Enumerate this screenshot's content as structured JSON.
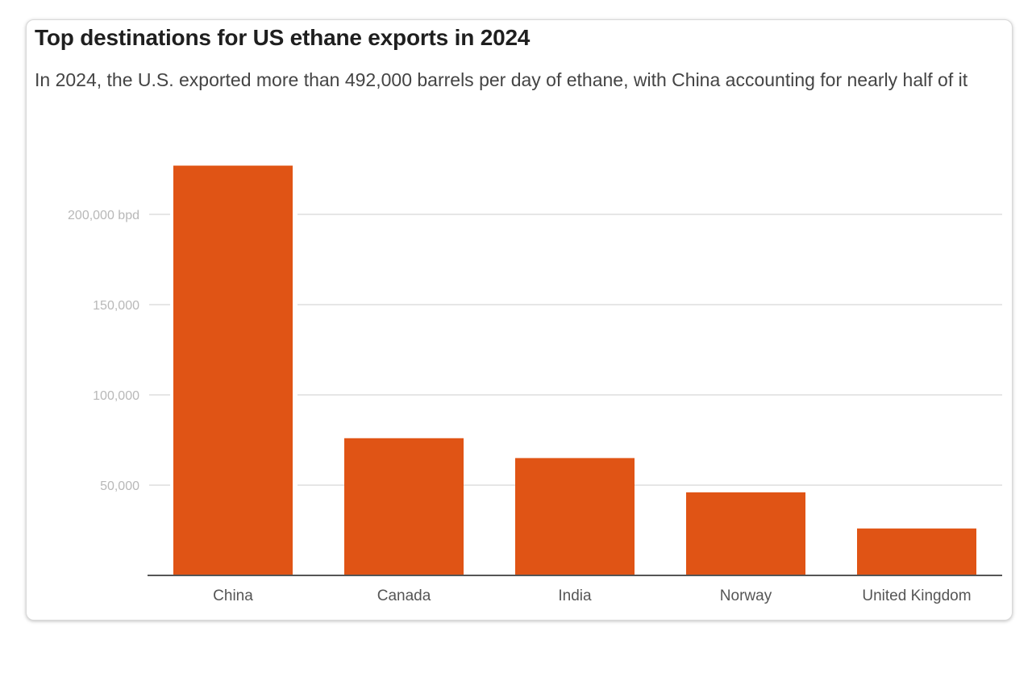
{
  "chart_data": {
    "type": "bar",
    "title": "Top destinations for US ethane exports in 2024",
    "subtitle": "In 2024, the U.S. exported more than 492,000 barrels per day of ethane, with China accounting for nearly half of it",
    "categories": [
      "China",
      "Canada",
      "India",
      "Norway",
      "United Kingdom"
    ],
    "values": [
      227000,
      76000,
      65000,
      46000,
      26000
    ],
    "xlabel": "",
    "ylabel": "",
    "unit": "bpd",
    "ylim": [
      0,
      240000
    ],
    "yticks": [
      50000,
      100000,
      150000,
      200000
    ],
    "ytick_labels": [
      "50,000",
      "100,000",
      "150,000",
      "200,000 bpd"
    ],
    "grid": true,
    "legend": "none",
    "colors": {
      "bar": "#e05415",
      "grid": "#e6e6e6",
      "axis": "#555555"
    }
  }
}
